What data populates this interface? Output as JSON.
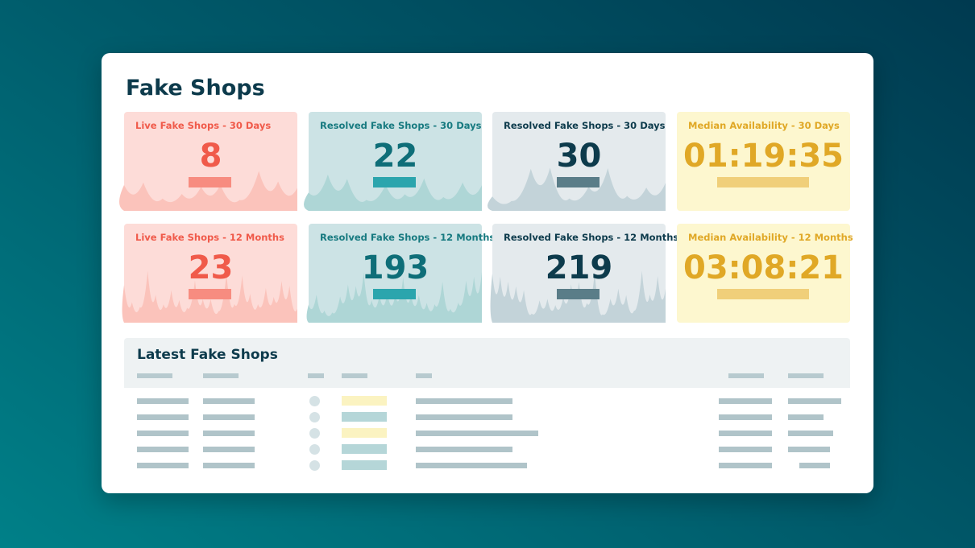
{
  "page": {
    "title": "Fake Shops"
  },
  "cards": [
    {
      "label": "Live Fake Shops - 30 Days",
      "value": "8",
      "theme": "r"
    },
    {
      "label": "Resolved Fake Shops - 30 Days",
      "value": "22",
      "theme": "t"
    },
    {
      "label": "Resolved Fake Shops - 30 Days",
      "value": "30",
      "theme": "g"
    },
    {
      "label": "Median Availability - 30 Days",
      "value": "01:19:35",
      "theme": "y"
    },
    {
      "label": "Live Fake Shops - 12 Months",
      "value": "23",
      "theme": "r"
    },
    {
      "label": "Resolved Fake Shops - 12 Months",
      "value": "193",
      "theme": "t"
    },
    {
      "label": "Resolved Fake Shops - 12 Months",
      "value": "219",
      "theme": "g"
    },
    {
      "label": "Median Availability - 12 Months",
      "value": "03:08:21",
      "theme": "y"
    }
  ],
  "colors": {
    "live": "#f05a4a",
    "resolved": "#177a80",
    "resolved_alt": "#0d3b4c",
    "availability": "#e0a826"
  },
  "table": {
    "title": "Latest Fake Shops",
    "status_colors": [
      "#fbf3c1",
      "#b5d6d8",
      "#fbf3c1",
      "#b5d6d8",
      "#b5d6d8"
    ]
  }
}
